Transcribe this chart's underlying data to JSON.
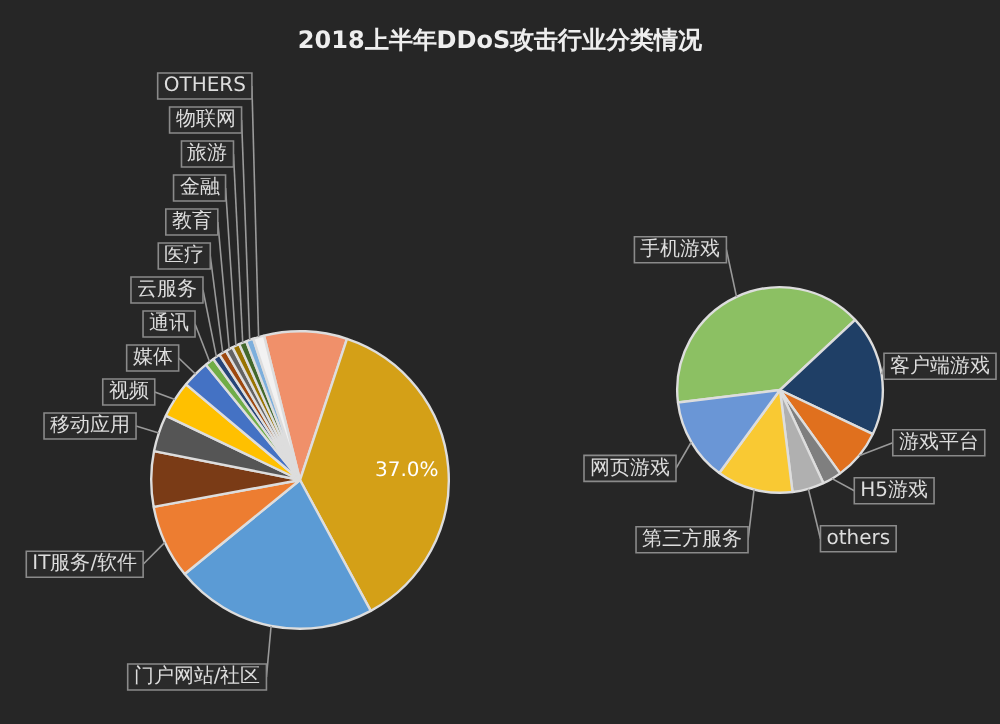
{
  "chart_data": [
    {
      "type": "pie",
      "title": "2018上半年DDoS攻击行业分类情况",
      "categories": [
        null,
        null,
        "门户网站/社区",
        "IT服务/软件",
        null,
        "移动应用",
        "视频",
        "媒体",
        "通讯",
        "云服务",
        "医疗",
        "教育",
        "金融",
        "旅游",
        "物联网",
        "OTHERS"
      ],
      "values": [
        9,
        37.0,
        22,
        8,
        6,
        4,
        4,
        3,
        1,
        0.8,
        0.8,
        0.8,
        0.8,
        0.8,
        0.8,
        1.2
      ],
      "colors": [
        "#f0906a",
        "#d4a017",
        "#5b9bd5",
        "#ed7d31",
        "#7a3b16",
        "#555555",
        "#ffc000",
        "#4472c4",
        "#70ad47",
        "#264478",
        "#9e480e",
        "#636363",
        "#997300",
        "#43682b",
        "#7cafdd",
        "#f2f2f2"
      ],
      "value_labels": [
        null,
        "37.0%",
        null,
        null,
        null,
        null,
        null,
        null,
        null,
        null,
        null,
        null,
        null,
        null,
        null,
        null
      ],
      "legend": false
    },
    {
      "type": "pie",
      "categories": [
        "手机游戏",
        "客户端游戏",
        "游戏平台",
        "H5游戏",
        "others",
        "第三方服务",
        "网页游戏"
      ],
      "values": [
        40,
        19,
        8,
        3,
        5,
        12,
        13
      ],
      "colors": [
        "#8cc063",
        "#1f3f66",
        "#e0701e",
        "#7f7f7f",
        "#b0b0b0",
        "#f9c933",
        "#6a96d6"
      ],
      "legend": false
    }
  ]
}
